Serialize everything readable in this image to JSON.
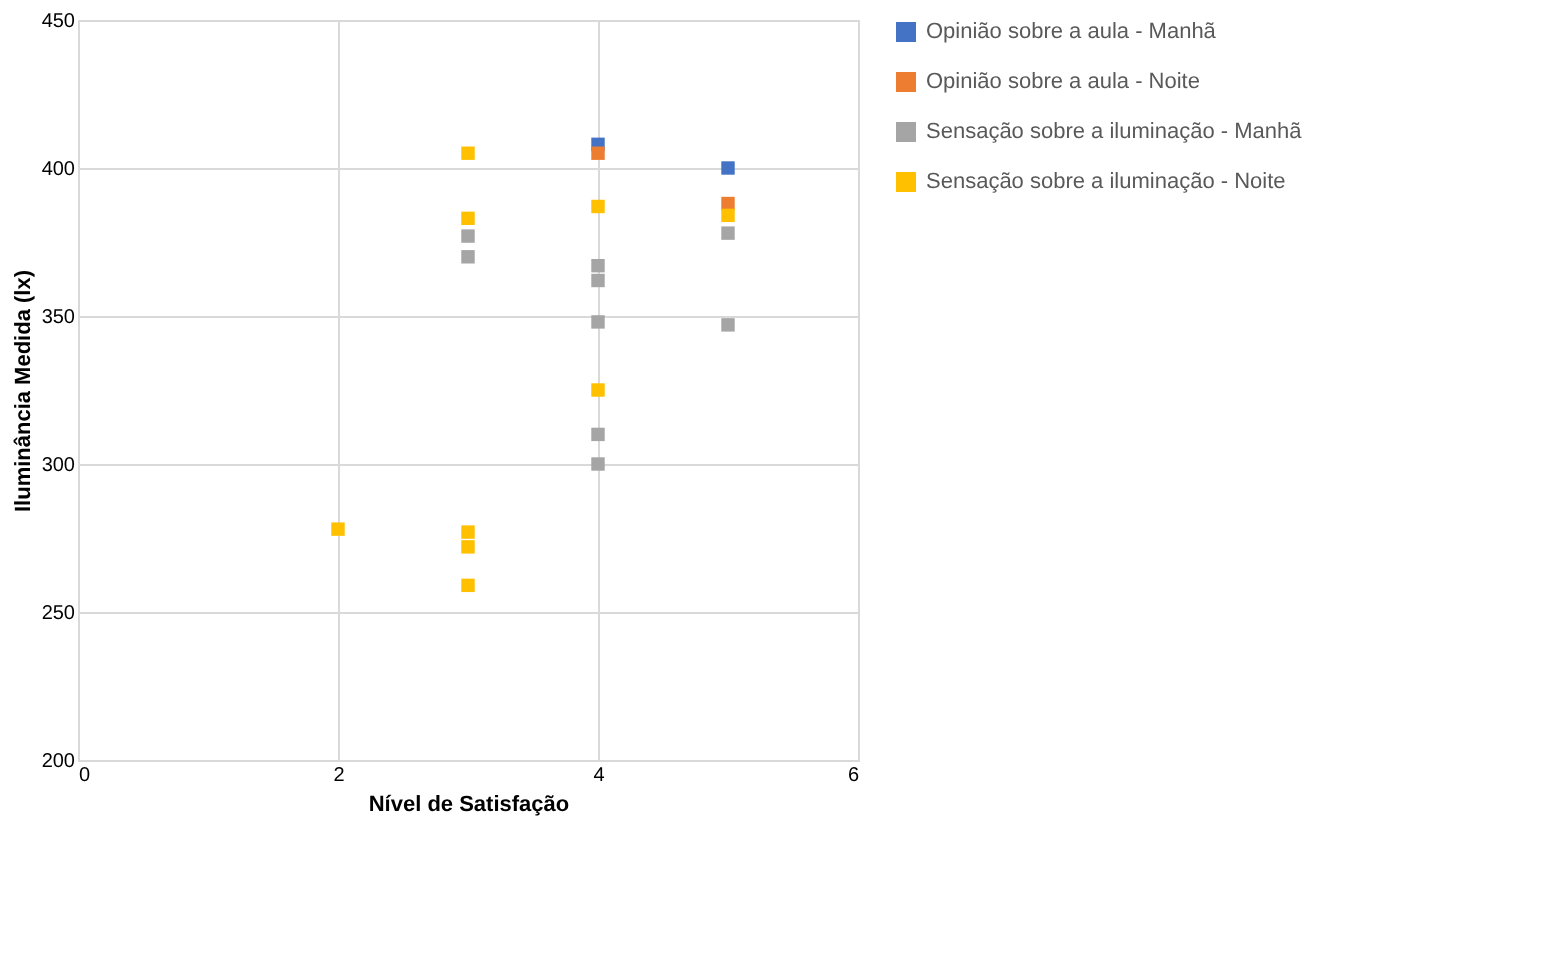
{
  "chart_data": {
    "type": "scatter",
    "xlabel": "Nível de Satisfação",
    "ylabel": "Iluminância Medida (lx)",
    "xlim": [
      0,
      6
    ],
    "xticks": [
      0,
      2,
      4,
      6
    ],
    "ylim": [
      200,
      450
    ],
    "yticks": [
      200,
      250,
      300,
      350,
      400,
      450
    ],
    "grid": true,
    "legend": "right",
    "marker": "square",
    "series": [
      {
        "name": "Opinião sobre a aula - Manhã",
        "color": "#4472c4",
        "x": [
          5,
          4
        ],
        "values": [
          400,
          408
        ]
      },
      {
        "name": "Opinião sobre a aula - Noite",
        "color": "#ed7d31",
        "x": [
          4,
          5
        ],
        "values": [
          405,
          388
        ]
      },
      {
        "name": "Sensação sobre a iluminação - Manhã",
        "color": "#a5a5a5",
        "x": [
          3,
          3,
          4,
          4,
          4,
          4,
          4,
          5,
          5
        ],
        "values": [
          377,
          370,
          367,
          362,
          348,
          310,
          300,
          347,
          378
        ]
      },
      {
        "name": "Sensação sobre a iluminação - Noite",
        "color": "#ffc000",
        "x": [
          2,
          3,
          3,
          3,
          3,
          3,
          4,
          4,
          5
        ],
        "values": [
          278,
          405,
          383,
          277,
          272,
          259,
          387,
          325,
          384
        ]
      }
    ]
  }
}
